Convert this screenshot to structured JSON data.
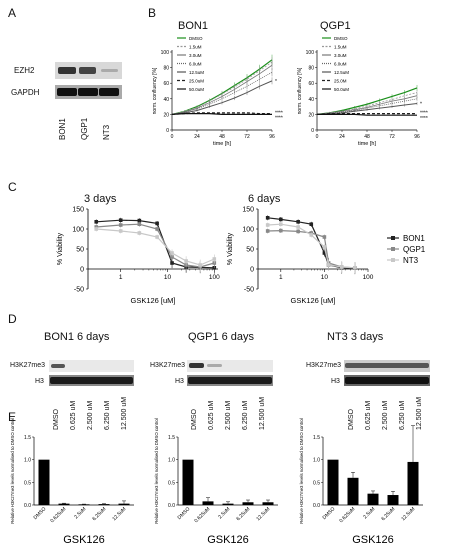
{
  "panels": {
    "A": "A",
    "B": "B",
    "C": "C",
    "D": "D",
    "E": "E"
  },
  "panelA": {
    "rows": [
      "EZH2",
      "GAPDH"
    ],
    "lanes": [
      "BON1",
      "QGP1",
      "NT3"
    ]
  },
  "panelB": {
    "charts": [
      {
        "title": "BON1",
        "ylabel": "norm. confluency [%]",
        "xlabel": "time [h]",
        "xticks": [
          "0",
          "24",
          "48",
          "72",
          "96"
        ],
        "yticks": [
          "0",
          "20",
          "40",
          "60",
          "80",
          "100"
        ],
        "legend": [
          "DMSO",
          "1.5uM",
          "3.0uM",
          "6.0uM",
          "12.5uM",
          "25.0uM",
          "50.0uM"
        ],
        "stars": [
          "*",
          "****",
          "****"
        ]
      },
      {
        "title": "QGP1",
        "ylabel": "norm. confluency [%]",
        "xlabel": "time [h]",
        "xticks": [
          "0",
          "24",
          "48",
          "72",
          "96"
        ],
        "yticks": [
          "0",
          "20",
          "40",
          "60",
          "80",
          "100"
        ],
        "legend": [
          "DMSO",
          "1.5uM",
          "3.0uM",
          "6.0uM",
          "12.5uM",
          "25.0M",
          "50.0uM"
        ],
        "stars": [
          "*",
          "****",
          "****"
        ]
      }
    ]
  },
  "panelC": {
    "charts": [
      {
        "title": "3 days",
        "ylabel": "% Viability",
        "xlabel": "GSK126 [uM]",
        "yticks": [
          "150",
          "100",
          "50",
          "0",
          "-50"
        ],
        "xticks": [
          "1",
          "10",
          "100"
        ]
      },
      {
        "title": "6 days",
        "ylabel": "% Viability",
        "xlabel": "GSK126 [uM]",
        "yticks": [
          "150",
          "100",
          "50",
          "0",
          "-50"
        ],
        "xticks": [
          "1",
          "10",
          "100"
        ]
      }
    ],
    "legend": [
      "BON1",
      "QGP1",
      "NT3"
    ]
  },
  "panelD": {
    "blots": [
      {
        "title": "BON1 6 days",
        "rows": [
          "H3K27me3",
          "H3"
        ]
      },
      {
        "title": "QGP1 6 days",
        "rows": [
          "H3K27me3",
          "H3"
        ]
      },
      {
        "title": "NT3 3 days",
        "rows": [
          "H3K27me3",
          "H3"
        ]
      }
    ],
    "lanes": [
      "DMSO",
      "0.625 uM",
      "2.500 uM",
      "6.250 uM",
      "12.500 uM"
    ]
  },
  "panelE": {
    "ylabel": "Relative H3K27me3 levels normalised to DMSO control",
    "xlabel": "GSK126",
    "yticks": [
      "0.0",
      "0.5",
      "1.0",
      "1.5"
    ],
    "categories": [
      "DMSO",
      "0.625uM",
      "2.5uM",
      "6.25uM",
      "12.5uM"
    ]
  },
  "chart_data": [
    {
      "type": "line",
      "title": "BON1",
      "xlabel": "time [h]",
      "ylabel": "norm. confluency [%]",
      "xlim": [
        0,
        96
      ],
      "ylim": [
        0,
        100
      ],
      "x": [
        0,
        12,
        24,
        36,
        48,
        60,
        72,
        84,
        96
      ],
      "series": [
        {
          "name": "DMSO",
          "values": [
            20,
            24,
            30,
            38,
            47,
            57,
            67,
            78,
            90
          ]
        },
        {
          "name": "1.5uM",
          "values": [
            20,
            24,
            29,
            37,
            46,
            55,
            65,
            76,
            87
          ]
        },
        {
          "name": "3.0uM",
          "values": [
            20,
            23,
            28,
            35,
            43,
            52,
            62,
            72,
            83
          ]
        },
        {
          "name": "6.0uM",
          "values": [
            20,
            23,
            27,
            33,
            40,
            48,
            56,
            65,
            74
          ]
        },
        {
          "name": "12.5uM",
          "values": [
            20,
            22,
            25,
            30,
            35,
            41,
            48,
            56,
            63
          ]
        },
        {
          "name": "25.0uM",
          "values": [
            20,
            21,
            22,
            22,
            22,
            22,
            22,
            21,
            21
          ]
        },
        {
          "name": "50.0uM",
          "values": [
            20,
            21,
            21,
            21,
            20,
            20,
            20,
            20,
            20
          ]
        }
      ]
    },
    {
      "type": "line",
      "title": "QGP1",
      "xlabel": "time [h]",
      "ylabel": "norm. confluency [%]",
      "xlim": [
        0,
        96
      ],
      "ylim": [
        0,
        100
      ],
      "x": [
        0,
        12,
        24,
        36,
        48,
        60,
        72,
        84,
        96
      ],
      "series": [
        {
          "name": "DMSO",
          "values": [
            20,
            22,
            25,
            29,
            33,
            38,
            43,
            48,
            54
          ]
        },
        {
          "name": "1.5uM",
          "values": [
            20,
            22,
            24,
            27,
            31,
            35,
            39,
            44,
            48
          ]
        },
        {
          "name": "3.0uM",
          "values": [
            20,
            22,
            24,
            26,
            29,
            33,
            37,
            40,
            44
          ]
        },
        {
          "name": "6.0uM",
          "values": [
            20,
            21,
            23,
            25,
            28,
            31,
            34,
            37,
            40
          ]
        },
        {
          "name": "12.5uM",
          "values": [
            20,
            21,
            22,
            24,
            26,
            28,
            30,
            32,
            34
          ]
        },
        {
          "name": "25.0M",
          "values": [
            20,
            21,
            21,
            21,
            21,
            21,
            21,
            21,
            21
          ]
        },
        {
          "name": "50.0uM",
          "values": [
            20,
            20,
            20,
            20,
            19,
            19,
            19,
            19,
            19
          ]
        }
      ]
    },
    {
      "type": "line",
      "title": "3 days",
      "xlabel": "GSK126 [uM]",
      "ylabel": "% Viability",
      "xscale": "log",
      "ylim": [
        -50,
        150
      ],
      "x": [
        0.3,
        1,
        2.5,
        6,
        12.5,
        25,
        50,
        100
      ],
      "series": [
        {
          "name": "BON1",
          "values": [
            118,
            122,
            121,
            114,
            15,
            5,
            4,
            3
          ]
        },
        {
          "name": "QGP1",
          "values": [
            105,
            110,
            112,
            100,
            30,
            10,
            5,
            15
          ]
        },
        {
          "name": "NT3",
          "values": [
            100,
            95,
            90,
            80,
            40,
            20,
            10,
            25
          ]
        }
      ]
    },
    {
      "type": "line",
      "title": "6 days",
      "xlabel": "GSK126 [uM]",
      "ylabel": "% Viability",
      "xscale": "log",
      "ylim": [
        -50,
        150
      ],
      "x": [
        0.5,
        1,
        2.5,
        5,
        10,
        12.5,
        25,
        50
      ],
      "series": [
        {
          "name": "BON1",
          "values": [
            128,
            124,
            118,
            112,
            40,
            10,
            3,
            2
          ]
        },
        {
          "name": "QGP1",
          "values": [
            95,
            96,
            94,
            90,
            80,
            15,
            5,
            3
          ]
        },
        {
          "name": "NT3",
          "values": [
            110,
            112,
            105,
            85,
            55,
            10,
            5,
            3
          ]
        }
      ]
    },
    {
      "type": "bar",
      "xlabel": "GSK126",
      "ylabel": "Relative H3K27me3 levels normalised to DMSO control",
      "categories": [
        "DMSO",
        "0.625uM",
        "2.5uM",
        "6.25uM",
        "12.5uM"
      ],
      "values": [
        1.0,
        0.03,
        0.015,
        0.02,
        0.03
      ],
      "errors": [
        0,
        0.01,
        0.005,
        0.01,
        0.06
      ],
      "ylim": [
        0,
        1.5
      ]
    },
    {
      "type": "bar",
      "xlabel": "GSK126",
      "ylabel": "Relative H3K27me3 levels normalised to DMSO control",
      "categories": [
        "DMSO",
        "0.625uM",
        "2.5uM",
        "6.25uM",
        "12.5uM"
      ],
      "values": [
        1.0,
        0.08,
        0.03,
        0.06,
        0.06
      ],
      "errors": [
        0,
        0.08,
        0.04,
        0.05,
        0.05
      ],
      "ylim": [
        0,
        1.5
      ]
    },
    {
      "type": "bar",
      "xlabel": "GSK126",
      "ylabel": "Relative H3K27me3 levels normalised to DMSO control",
      "categories": [
        "DMSO",
        "0.625uM",
        "2.5uM",
        "6.25uM",
        "12.5uM"
      ],
      "values": [
        1.0,
        0.6,
        0.25,
        0.22,
        0.95
      ],
      "errors": [
        0,
        0.12,
        0.06,
        0.08,
        0.8
      ],
      "ylim": [
        0,
        1.5
      ]
    }
  ]
}
